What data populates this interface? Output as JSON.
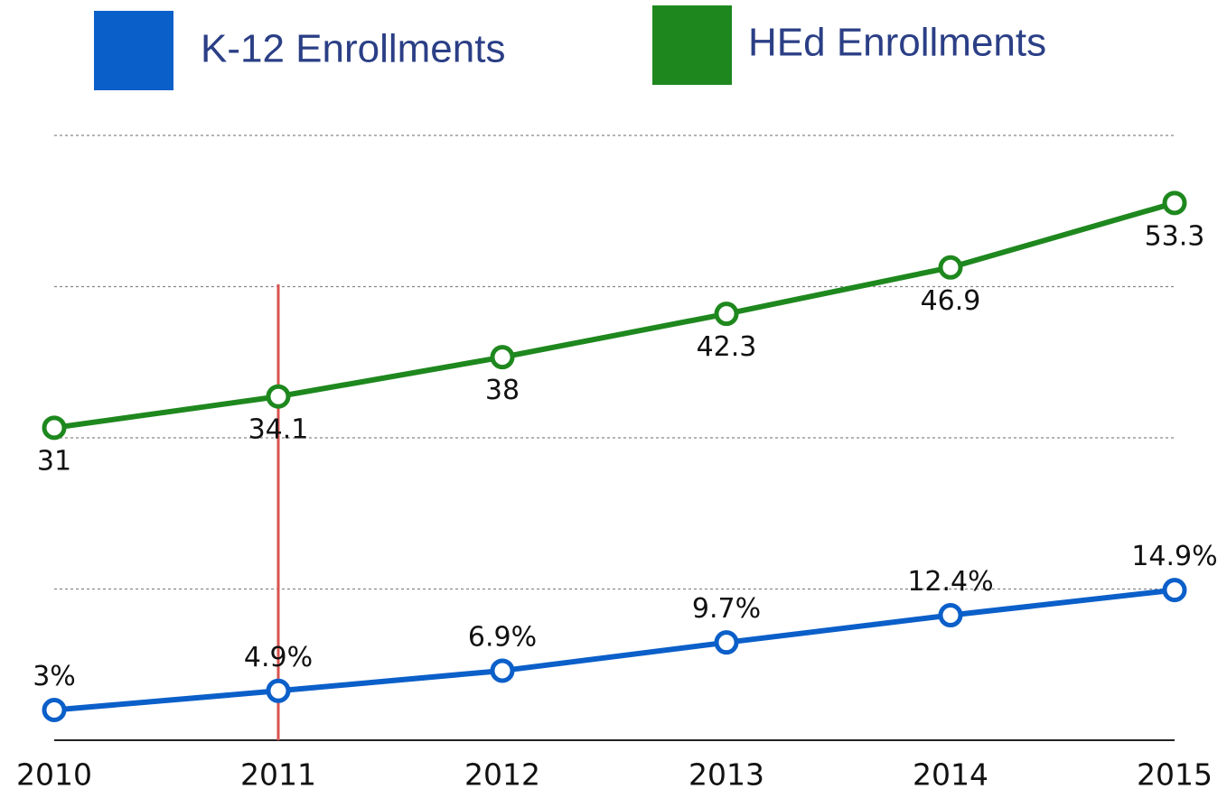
{
  "chart_data": {
    "type": "line",
    "categories": [
      "2010",
      "2011",
      "2012",
      "2013",
      "2014",
      "2015"
    ],
    "series": [
      {
        "name": "K-12 Enrollments",
        "color": "#0b5fc9",
        "values": [
          3,
          4.9,
          6.9,
          9.7,
          12.4,
          14.9
        ],
        "value_labels": [
          "3%",
          "4.9%",
          "6.9%",
          "9.7%",
          "12.4%",
          "14.9%"
        ],
        "label_position": "above"
      },
      {
        "name": "HEd Enrollments",
        "color": "#1e881e",
        "values": [
          31,
          34.1,
          38,
          42.3,
          46.9,
          53.3
        ],
        "label_position": "below"
      }
    ],
    "ylim": [
      0,
      60
    ],
    "yticks": [
      0,
      15,
      30,
      45,
      60
    ],
    "grid": true,
    "highlight": {
      "x": "2011",
      "color": "#d9534f"
    }
  }
}
